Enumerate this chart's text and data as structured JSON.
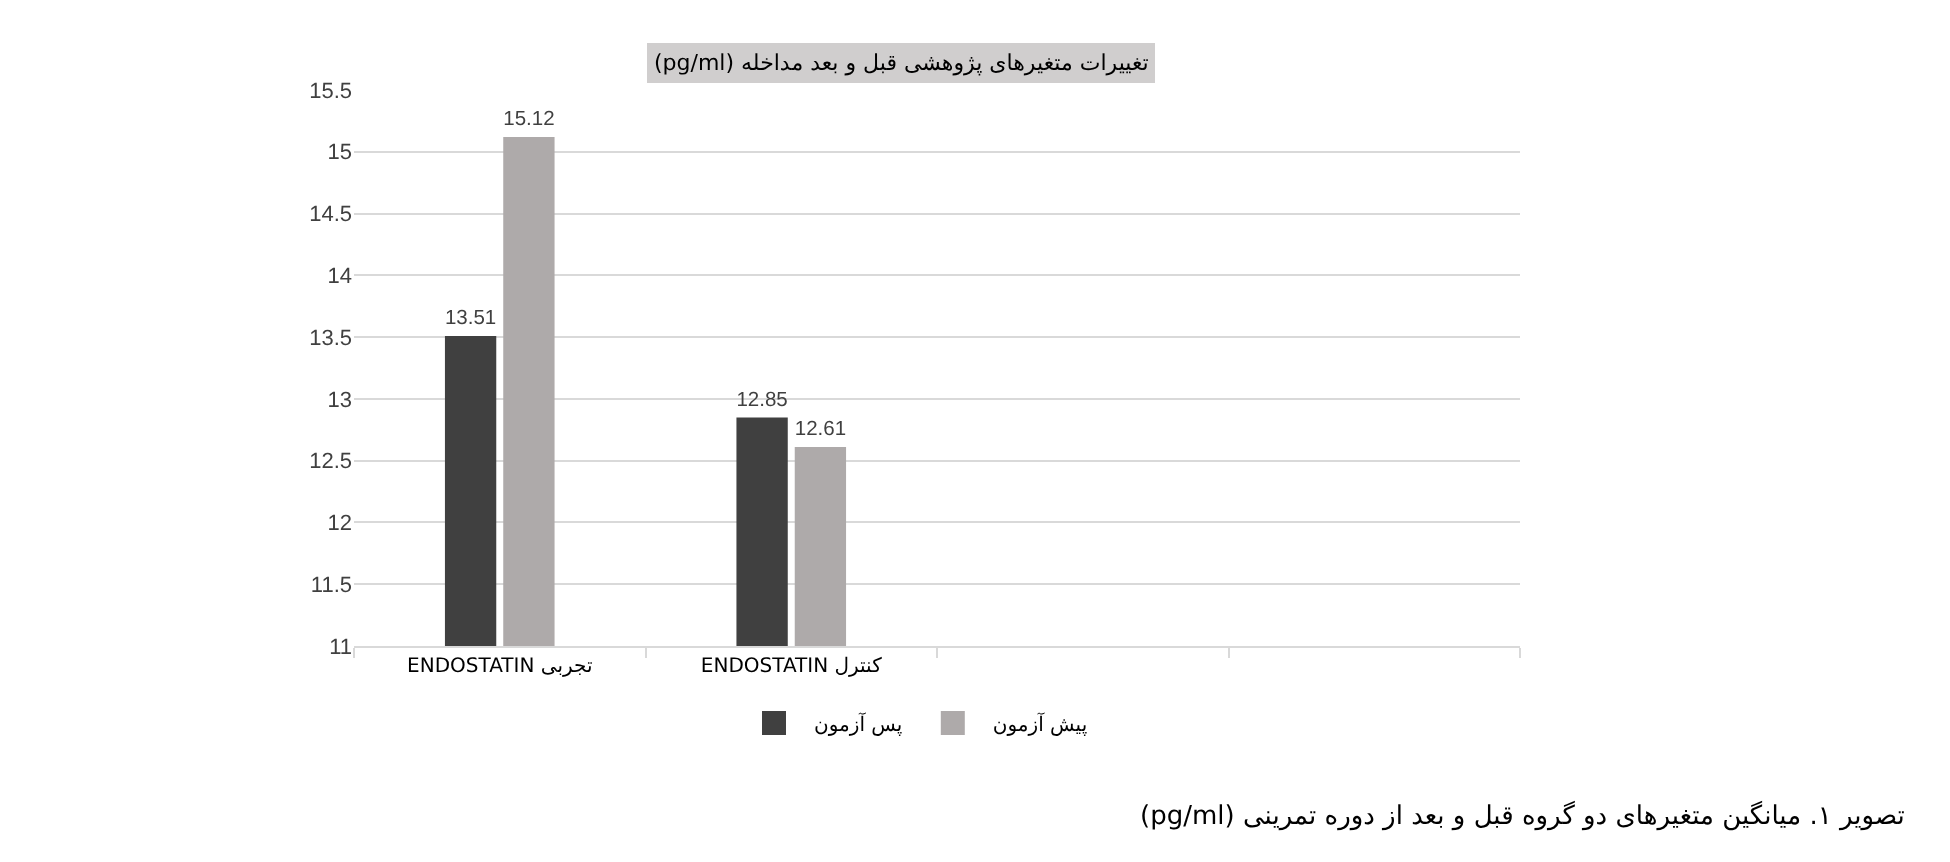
{
  "chart_data": {
    "type": "bar",
    "title": "تغییرات متغیرهای پژوهشی قبل و بعد مداخله (pg/ml)",
    "categories": [
      "تجربی ENDOSTATIN",
      "کنترل ENDOSTATIN",
      null,
      null
    ],
    "series": [
      {
        "name": "پس آزمون",
        "color": "#404040",
        "values": [
          13.51,
          12.85,
          null,
          null
        ]
      },
      {
        "name": "پیش آزمون",
        "color": "#aeaaaa",
        "values": [
          15.12,
          12.61,
          null,
          null
        ]
      }
    ],
    "ylim": [
      11,
      15.5
    ],
    "yticks": [
      11,
      11.5,
      12,
      12.5,
      13,
      13.5,
      14,
      14.5,
      15,
      15.5
    ],
    "grid": "y",
    "legend": "bottom",
    "data_labels": true,
    "annotations": [
      "تصویر ۱. میانگین متغیرهای دو گروه قبل و بعد از دوره تمرینی (pg/ml)"
    ]
  }
}
